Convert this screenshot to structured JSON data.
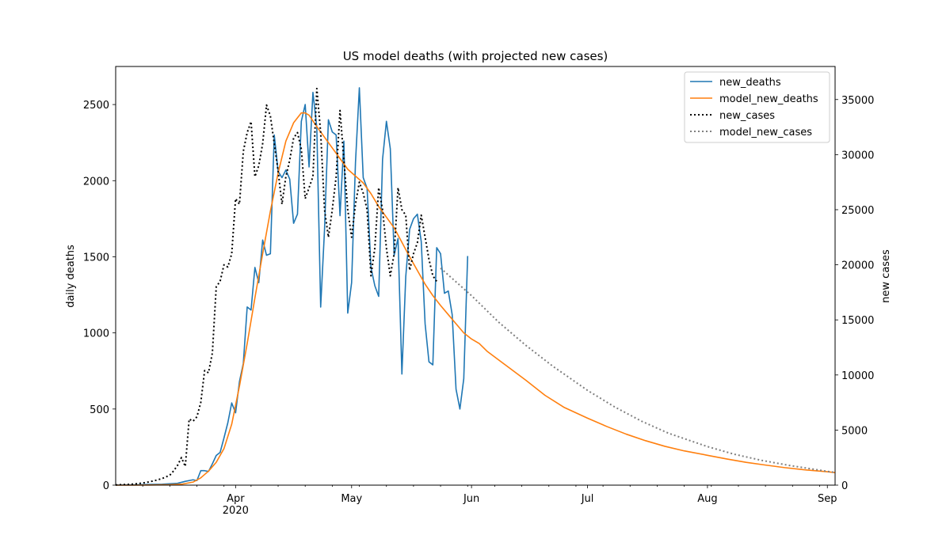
{
  "chart_data": {
    "type": "line",
    "title": "US model deaths (with projected new cases)",
    "xlabel": "",
    "ylabel": "daily deaths",
    "y2label": "new cases",
    "x_range": [
      "2020-03-01",
      "2020-09-03"
    ],
    "ylim": [
      0,
      2750
    ],
    "y2lim": [
      0,
      38000
    ],
    "y_ticks": [
      0,
      500,
      1000,
      1500,
      2000,
      2500
    ],
    "y2_ticks": [
      0,
      5000,
      10000,
      15000,
      20000,
      25000,
      30000,
      35000
    ],
    "x_ticks": [
      {
        "date": "2020-04-01",
        "label": "Apr",
        "sublabel": "2020"
      },
      {
        "date": "2020-05-01",
        "label": "May",
        "sublabel": ""
      },
      {
        "date": "2020-06-01",
        "label": "Jun",
        "sublabel": ""
      },
      {
        "date": "2020-07-01",
        "label": "Jul",
        "sublabel": ""
      },
      {
        "date": "2020-08-01",
        "label": "Aug",
        "sublabel": ""
      },
      {
        "date": "2020-09-01",
        "label": "Sep",
        "sublabel": ""
      }
    ],
    "x_minor_ticks": [
      "2020-03-08",
      "2020-03-15",
      "2020-03-22",
      "2020-03-29",
      "2020-04-05",
      "2020-04-12",
      "2020-04-19",
      "2020-04-26",
      "2020-05-03",
      "2020-05-10",
      "2020-05-17",
      "2020-05-24",
      "2020-05-31",
      "2020-06-07",
      "2020-06-14",
      "2020-06-21",
      "2020-06-28",
      "2020-07-05",
      "2020-07-12",
      "2020-07-19",
      "2020-07-26",
      "2020-08-02",
      "2020-08-09",
      "2020-08-16",
      "2020-08-23",
      "2020-08-30"
    ],
    "grid": false,
    "legend_position": "top-right",
    "series": [
      {
        "name": "new_deaths",
        "axis": "left",
        "color": "#1f77b4",
        "style": "solid",
        "points": [
          [
            "2020-03-01",
            1
          ],
          [
            "2020-03-05",
            2
          ],
          [
            "2020-03-09",
            4
          ],
          [
            "2020-03-13",
            6
          ],
          [
            "2020-03-17",
            12
          ],
          [
            "2020-03-19",
            25
          ],
          [
            "2020-03-21",
            35
          ],
          [
            "2020-03-22",
            30
          ],
          [
            "2020-03-23",
            95
          ],
          [
            "2020-03-24",
            95
          ],
          [
            "2020-03-25",
            90
          ],
          [
            "2020-03-26",
            140
          ],
          [
            "2020-03-27",
            195
          ],
          [
            "2020-03-28",
            215
          ],
          [
            "2020-03-29",
            310
          ],
          [
            "2020-03-30",
            410
          ],
          [
            "2020-03-31",
            540
          ],
          [
            "2020-04-01",
            475
          ],
          [
            "2020-04-02",
            680
          ],
          [
            "2020-04-03",
            800
          ],
          [
            "2020-04-04",
            1170
          ],
          [
            "2020-04-05",
            1150
          ],
          [
            "2020-04-06",
            1430
          ],
          [
            "2020-04-07",
            1330
          ],
          [
            "2020-04-08",
            1610
          ],
          [
            "2020-04-09",
            1510
          ],
          [
            "2020-04-10",
            1520
          ],
          [
            "2020-04-11",
            2300
          ],
          [
            "2020-04-12",
            2060
          ],
          [
            "2020-04-13",
            2020
          ],
          [
            "2020-04-14",
            2070
          ],
          [
            "2020-04-15",
            2010
          ],
          [
            "2020-04-16",
            1720
          ],
          [
            "2020-04-17",
            1780
          ],
          [
            "2020-04-18",
            2390
          ],
          [
            "2020-04-19",
            2500
          ],
          [
            "2020-04-20",
            2090
          ],
          [
            "2020-04-21",
            2580
          ],
          [
            "2020-04-22",
            2350
          ],
          [
            "2020-04-23",
            1170
          ],
          [
            "2020-04-24",
            1680
          ],
          [
            "2020-04-25",
            2400
          ],
          [
            "2020-04-26",
            2320
          ],
          [
            "2020-04-27",
            2300
          ],
          [
            "2020-04-28",
            1770
          ],
          [
            "2020-04-29",
            2260
          ],
          [
            "2020-04-30",
            1130
          ],
          [
            "2020-05-01",
            1330
          ],
          [
            "2020-05-02",
            2120
          ],
          [
            "2020-05-03",
            2610
          ],
          [
            "2020-05-04",
            2020
          ],
          [
            "2020-05-05",
            1950
          ],
          [
            "2020-05-06",
            1430
          ],
          [
            "2020-05-07",
            1310
          ],
          [
            "2020-05-08",
            1240
          ],
          [
            "2020-05-09",
            2140
          ],
          [
            "2020-05-10",
            2390
          ],
          [
            "2020-05-11",
            2210
          ],
          [
            "2020-05-12",
            1510
          ],
          [
            "2020-05-13",
            1620
          ],
          [
            "2020-05-14",
            730
          ],
          [
            "2020-05-15",
            1370
          ],
          [
            "2020-05-16",
            1680
          ],
          [
            "2020-05-17",
            1750
          ],
          [
            "2020-05-18",
            1780
          ],
          [
            "2020-05-19",
            1600
          ],
          [
            "2020-05-20",
            1060
          ],
          [
            "2020-05-21",
            810
          ],
          [
            "2020-05-22",
            790
          ],
          [
            "2020-05-23",
            1560
          ],
          [
            "2020-05-24",
            1520
          ],
          [
            "2020-05-25",
            1260
          ],
          [
            "2020-05-26",
            1275
          ],
          [
            "2020-05-27",
            1120
          ],
          [
            "2020-05-28",
            630
          ],
          [
            "2020-05-29",
            500
          ],
          [
            "2020-05-30",
            700
          ],
          [
            "2020-05-31",
            1505
          ]
        ]
      },
      {
        "name": "model_new_deaths",
        "axis": "left",
        "color": "#ff7f0e",
        "style": "solid",
        "points": [
          [
            "2020-03-01",
            0
          ],
          [
            "2020-03-05",
            0
          ],
          [
            "2020-03-10",
            1
          ],
          [
            "2020-03-15",
            3
          ],
          [
            "2020-03-18",
            6
          ],
          [
            "2020-03-21",
            20
          ],
          [
            "2020-03-23",
            48
          ],
          [
            "2020-03-25",
            92
          ],
          [
            "2020-03-27",
            150
          ],
          [
            "2020-03-29",
            240
          ],
          [
            "2020-03-31",
            400
          ],
          [
            "2020-04-02",
            650
          ],
          [
            "2020-04-04",
            930
          ],
          [
            "2020-04-06",
            1230
          ],
          [
            "2020-04-08",
            1520
          ],
          [
            "2020-04-10",
            1800
          ],
          [
            "2020-04-12",
            2050
          ],
          [
            "2020-04-14",
            2260
          ],
          [
            "2020-04-16",
            2380
          ],
          [
            "2020-04-18",
            2445
          ],
          [
            "2020-04-19",
            2445
          ],
          [
            "2020-04-20",
            2430
          ],
          [
            "2020-04-22",
            2355
          ],
          [
            "2020-04-24",
            2285
          ],
          [
            "2020-04-26",
            2215
          ],
          [
            "2020-04-28",
            2145
          ],
          [
            "2020-04-30",
            2075
          ],
          [
            "2020-05-02",
            2030
          ],
          [
            "2020-05-04",
            1985
          ],
          [
            "2020-05-06",
            1915
          ],
          [
            "2020-05-08",
            1830
          ],
          [
            "2020-05-10",
            1760
          ],
          [
            "2020-05-12",
            1690
          ],
          [
            "2020-05-14",
            1595
          ],
          [
            "2020-05-16",
            1500
          ],
          [
            "2020-05-18",
            1410
          ],
          [
            "2020-05-20",
            1320
          ],
          [
            "2020-05-22",
            1245
          ],
          [
            "2020-05-24",
            1180
          ],
          [
            "2020-05-26",
            1120
          ],
          [
            "2020-05-28",
            1060
          ],
          [
            "2020-05-30",
            1000
          ],
          [
            "2020-06-01",
            960
          ],
          [
            "2020-06-03",
            930
          ],
          [
            "2020-06-05",
            880
          ],
          [
            "2020-06-10",
            785
          ],
          [
            "2020-06-15",
            690
          ],
          [
            "2020-06-20",
            590
          ],
          [
            "2020-06-25",
            510
          ],
          [
            "2020-07-01",
            440
          ],
          [
            "2020-07-06",
            385
          ],
          [
            "2020-07-11",
            335
          ],
          [
            "2020-07-16",
            292
          ],
          [
            "2020-07-21",
            255
          ],
          [
            "2020-07-26",
            225
          ],
          [
            "2020-08-01",
            196
          ],
          [
            "2020-08-06",
            172
          ],
          [
            "2020-08-11",
            150
          ],
          [
            "2020-08-16",
            132
          ],
          [
            "2020-08-21",
            115
          ],
          [
            "2020-08-26",
            101
          ],
          [
            "2020-09-01",
            88
          ],
          [
            "2020-09-03",
            82
          ]
        ]
      },
      {
        "name": "new_cases",
        "axis": "right",
        "color": "#000000",
        "style": "dotted",
        "points": [
          [
            "2020-03-01",
            20
          ],
          [
            "2020-03-03",
            50
          ],
          [
            "2020-03-05",
            80
          ],
          [
            "2020-03-07",
            150
          ],
          [
            "2020-03-09",
            250
          ],
          [
            "2020-03-11",
            400
          ],
          [
            "2020-03-13",
            600
          ],
          [
            "2020-03-15",
            900
          ],
          [
            "2020-03-16",
            1300
          ],
          [
            "2020-03-17",
            1800
          ],
          [
            "2020-03-18",
            2500
          ],
          [
            "2020-03-19",
            1700
          ],
          [
            "2020-03-20",
            6000
          ],
          [
            "2020-03-21",
            5800
          ],
          [
            "2020-03-22",
            6200
          ],
          [
            "2020-03-23",
            7500
          ],
          [
            "2020-03-24",
            10400
          ],
          [
            "2020-03-25",
            10200
          ],
          [
            "2020-03-26",
            12000
          ],
          [
            "2020-03-27",
            18000
          ],
          [
            "2020-03-28",
            18500
          ],
          [
            "2020-03-29",
            20000
          ],
          [
            "2020-03-30",
            19800
          ],
          [
            "2020-03-31",
            21000
          ],
          [
            "2020-04-01",
            26000
          ],
          [
            "2020-04-02",
            25500
          ],
          [
            "2020-04-03",
            30300
          ],
          [
            "2020-04-04",
            32000
          ],
          [
            "2020-04-05",
            33000
          ],
          [
            "2020-04-06",
            28000
          ],
          [
            "2020-04-07",
            29000
          ],
          [
            "2020-04-08",
            31000
          ],
          [
            "2020-04-09",
            34500
          ],
          [
            "2020-04-10",
            33500
          ],
          [
            "2020-04-11",
            31000
          ],
          [
            "2020-04-12",
            28500
          ],
          [
            "2020-04-13",
            25500
          ],
          [
            "2020-04-14",
            28000
          ],
          [
            "2020-04-15",
            29500
          ],
          [
            "2020-04-16",
            31500
          ],
          [
            "2020-04-17",
            32000
          ],
          [
            "2020-04-18",
            30500
          ],
          [
            "2020-04-19",
            26000
          ],
          [
            "2020-04-20",
            27000
          ],
          [
            "2020-04-21",
            28000
          ],
          [
            "2020-04-22",
            36000
          ],
          [
            "2020-04-23",
            32000
          ],
          [
            "2020-04-24",
            25000
          ],
          [
            "2020-04-25",
            22500
          ],
          [
            "2020-04-26",
            25000
          ],
          [
            "2020-04-27",
            28000
          ],
          [
            "2020-04-28",
            34000
          ],
          [
            "2020-04-29",
            29500
          ],
          [
            "2020-04-30",
            25000
          ],
          [
            "2020-05-01",
            22500
          ],
          [
            "2020-05-02",
            25500
          ],
          [
            "2020-05-03",
            27500
          ],
          [
            "2020-05-04",
            26500
          ],
          [
            "2020-05-05",
            25000
          ],
          [
            "2020-05-06",
            19000
          ],
          [
            "2020-05-07",
            21500
          ],
          [
            "2020-05-08",
            27000
          ],
          [
            "2020-05-09",
            25000
          ],
          [
            "2020-05-10",
            21500
          ],
          [
            "2020-05-11",
            19000
          ],
          [
            "2020-05-12",
            21000
          ],
          [
            "2020-05-13",
            27000
          ],
          [
            "2020-05-14",
            25000
          ],
          [
            "2020-05-15",
            24500
          ],
          [
            "2020-05-16",
            19500
          ],
          [
            "2020-05-17",
            21000
          ],
          [
            "2020-05-18",
            22000
          ],
          [
            "2020-05-19",
            24500
          ],
          [
            "2020-05-20",
            22500
          ],
          [
            "2020-05-21",
            20500
          ],
          [
            "2020-05-22",
            19000
          ],
          [
            "2020-05-23",
            18500
          ]
        ]
      },
      {
        "name": "model_new_cases",
        "axis": "right",
        "color": "#7f7f7f",
        "style": "dotted",
        "points": [
          [
            "2020-05-24",
            19700
          ],
          [
            "2020-06-01",
            17200
          ],
          [
            "2020-06-08",
            14800
          ],
          [
            "2020-06-15",
            12700
          ],
          [
            "2020-06-22",
            10800
          ],
          [
            "2020-07-01",
            8600
          ],
          [
            "2020-07-08",
            7100
          ],
          [
            "2020-07-15",
            5800
          ],
          [
            "2020-07-22",
            4700
          ],
          [
            "2020-08-01",
            3500
          ],
          [
            "2020-08-08",
            2800
          ],
          [
            "2020-08-15",
            2250
          ],
          [
            "2020-08-22",
            1800
          ],
          [
            "2020-09-01",
            1250
          ],
          [
            "2020-09-03",
            1150
          ]
        ]
      }
    ]
  }
}
